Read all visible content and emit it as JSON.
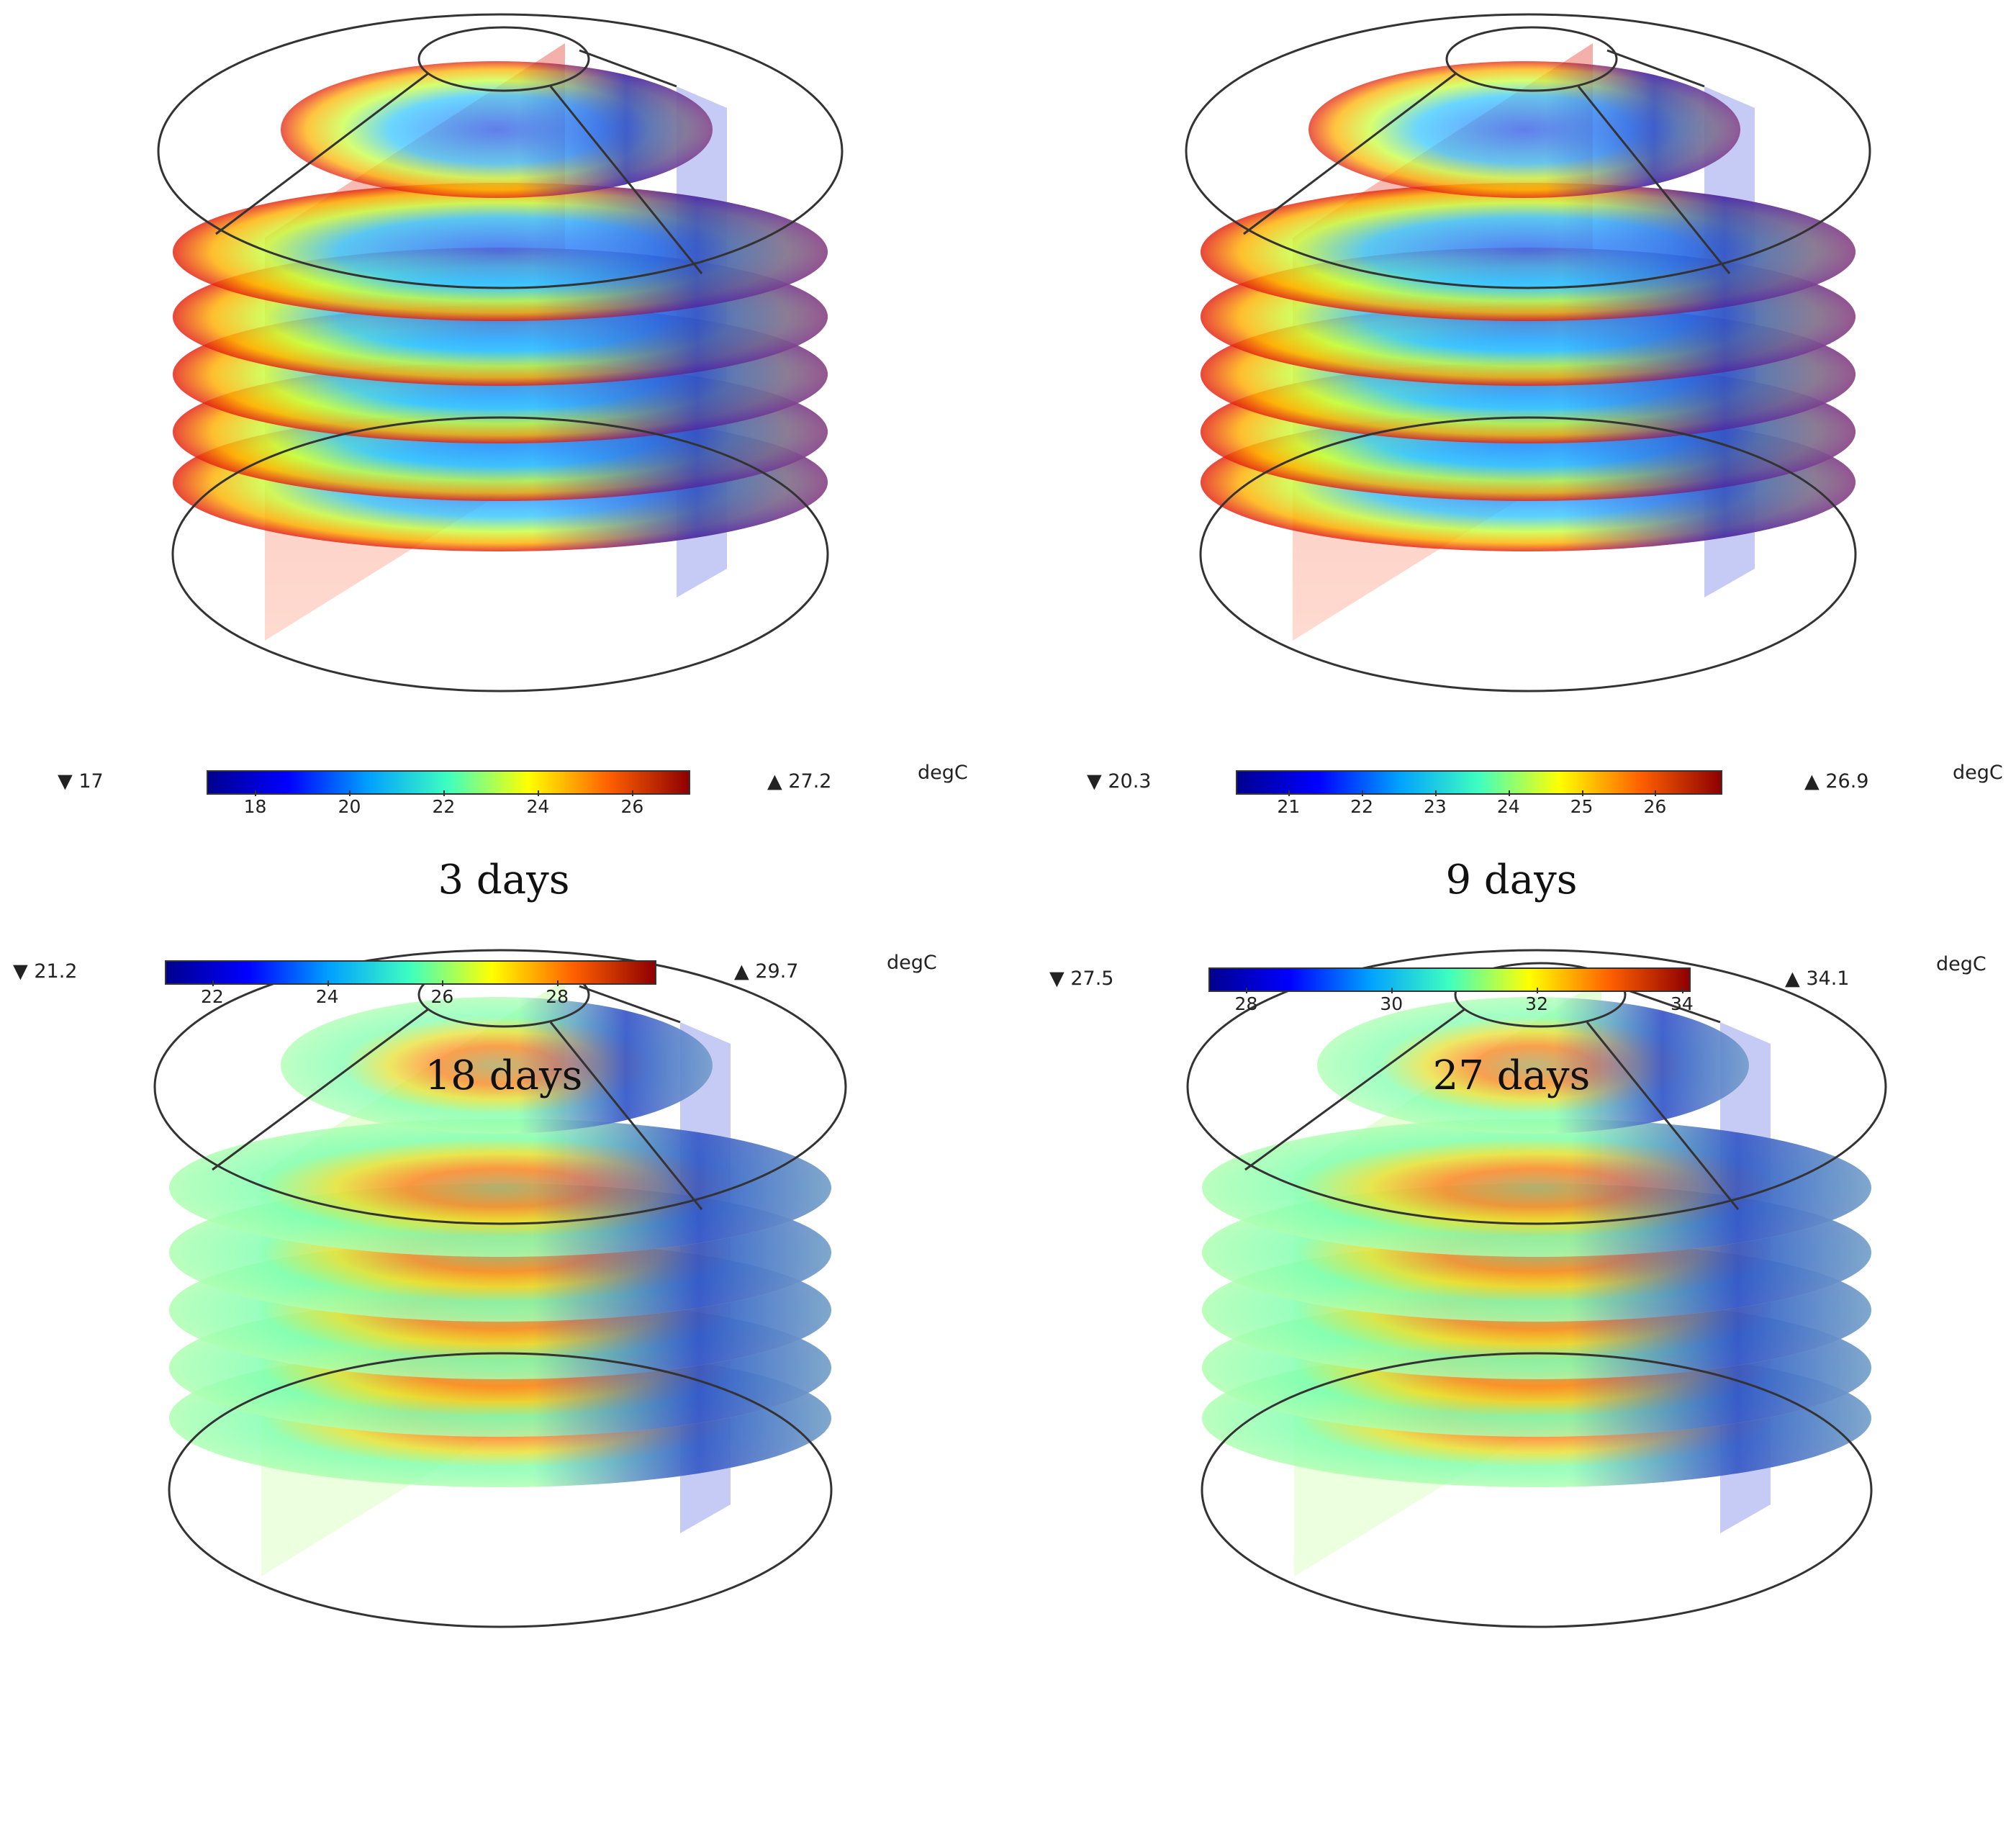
{
  "panels": [
    {
      "caption": "3 days",
      "min_label": "▼ 17",
      "max_label": "▲ 27.2",
      "unit": "degC",
      "range": [
        17,
        27.2
      ],
      "ticks": [
        "18",
        "20",
        "22",
        "24",
        "26"
      ],
      "tick_values": [
        18,
        20,
        22,
        24,
        26
      ],
      "colormap": "jet"
    },
    {
      "caption": "9 days",
      "min_label": "▼ 20.3",
      "max_label": "▲ 26.9",
      "unit": "degC",
      "range": [
        20.3,
        26.9
      ],
      "ticks": [
        "21",
        "22",
        "23",
        "24",
        "25",
        "26"
      ],
      "tick_values": [
        21,
        22,
        23,
        24,
        25,
        26
      ],
      "colormap": "jet"
    },
    {
      "caption": "18 days",
      "min_label": "▼ 21.2",
      "max_label": "▲ 29.7",
      "unit": "degC",
      "range": [
        21.2,
        29.7
      ],
      "ticks": [
        "22",
        "24",
        "26",
        "28"
      ],
      "tick_values": [
        22,
        24,
        26,
        28
      ],
      "colormap": "jet"
    },
    {
      "caption": "27 days",
      "min_label": "▼ 27.5",
      "max_label": "▲ 34.1",
      "unit": "degC",
      "range": [
        27.5,
        34.1
      ],
      "ticks": [
        "28",
        "30",
        "32",
        "34"
      ],
      "tick_values": [
        28,
        30,
        32,
        34
      ],
      "colormap": "jet"
    }
  ],
  "colors": {
    "jet_stops": [
      "#00008f",
      "#0000ff",
      "#00a0ff",
      "#3fffbf",
      "#ffff00",
      "#ff6000",
      "#8f0000"
    ]
  }
}
